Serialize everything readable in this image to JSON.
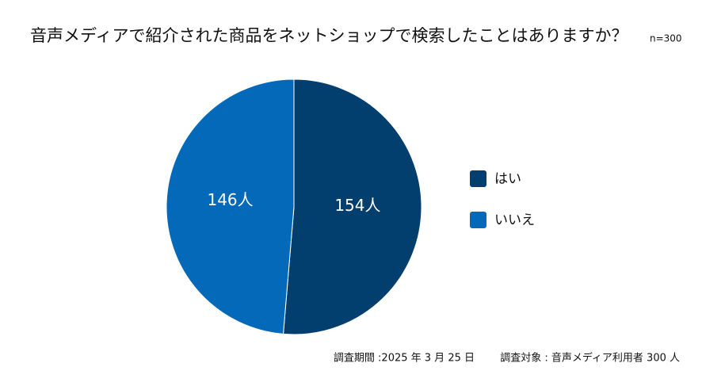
{
  "chart_data": {
    "type": "pie",
    "title": "音声メディアで紹介された商品をネットショップで検索したことはありますか？",
    "subtitle": "n=300",
    "categories": [
      "はい",
      "いいえ"
    ],
    "values": [
      154,
      146
    ],
    "value_labels": [
      "154人",
      "146人"
    ],
    "colors": [
      "#023e6e",
      "#0469b8"
    ],
    "legend": "right",
    "notes": [
      "調査期間 :2025 年 3 月 25 日",
      "調査対象 : 音声メディア利用者 300 人"
    ]
  }
}
